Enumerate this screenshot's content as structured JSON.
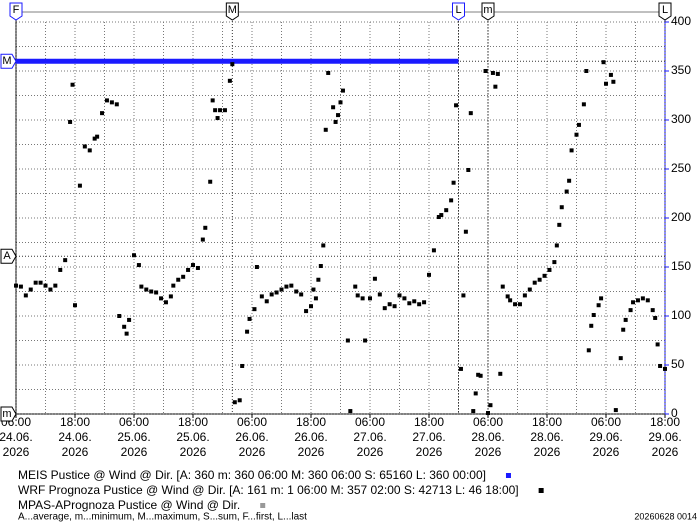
{
  "chart_data": {
    "type": "scatter",
    "xlim": [
      "2026-06-24T06:00",
      "2026-06-29T18:00"
    ],
    "ylim": [
      0,
      400
    ],
    "xticks": [
      {
        "value": "2026-06-24T06:00",
        "label": [
          "06:00",
          "24.06.",
          "2026"
        ]
      },
      {
        "value": "2026-06-24T18:00",
        "label": [
          "18:00",
          "24.06.",
          "2026"
        ]
      },
      {
        "value": "2026-06-25T06:00",
        "label": [
          "06:00",
          "25.06.",
          "2026"
        ]
      },
      {
        "value": "2026-06-25T18:00",
        "label": [
          "18:00",
          "25.06.",
          "2026"
        ]
      },
      {
        "value": "2026-06-26T06:00",
        "label": [
          "06:00",
          "26.06.",
          "2026"
        ]
      },
      {
        "value": "2026-06-26T18:00",
        "label": [
          "18:00",
          "26.06.",
          "2026"
        ]
      },
      {
        "value": "2026-06-27T06:00",
        "label": [
          "06:00",
          "27.06.",
          "2026"
        ]
      },
      {
        "value": "2026-06-27T18:00",
        "label": [
          "18:00",
          "27.06.",
          "2026"
        ]
      },
      {
        "value": "2026-06-28T06:00",
        "label": [
          "06:00",
          "28.06.",
          "2026"
        ]
      },
      {
        "value": "2026-06-28T18:00",
        "label": [
          "18:00",
          "28.06.",
          "2026"
        ]
      },
      {
        "value": "2026-06-29T06:00",
        "label": [
          "06:00",
          "29.06.",
          "2026"
        ]
      },
      {
        "value": "2026-06-29T18:00",
        "label": [
          "18:00",
          "29.06.",
          "2026"
        ]
      }
    ],
    "yticks": [
      0,
      50,
      100,
      150,
      200,
      250,
      300,
      350,
      400
    ],
    "grid": true,
    "minor_grid": true,
    "axis_color": "#1a1aff",
    "series": [
      {
        "name": "MEIS Pustice @ Wind @ Dir.",
        "stats": "[A: 360 m: 360 06:00 M: 360 06:00 S: 65160 L: 360 00:00]",
        "color": "#1a1aff",
        "style": "line",
        "x": [
          "2026-06-24T06:00",
          "2026-06-28T00:00"
        ],
        "values": [
          360,
          360
        ]
      },
      {
        "name": "WRF Prognoza Pustice @ Wind @ Dir.",
        "stats": "[A: 161 m: 1 06:00 M: 357 02:00 S: 42713 L: 46 18:00]",
        "color": "#000000",
        "style": "points",
        "x": [
          "2026-06-24T06:00",
          "2026-06-24T07:00",
          "2026-06-24T08:00",
          "2026-06-24T09:00",
          "2026-06-24T10:00",
          "2026-06-24T11:00",
          "2026-06-24T12:00",
          "2026-06-24T13:00",
          "2026-06-24T14:00",
          "2026-06-24T15:00",
          "2026-06-24T16:00",
          "2026-06-24T17:00",
          "2026-06-24T17:30",
          "2026-06-24T18:00",
          "2026-06-24T19:00",
          "2026-06-24T20:00",
          "2026-06-24T21:00",
          "2026-06-24T22:00",
          "2026-06-24T22:30",
          "2026-06-24T23:30",
          "2026-06-25T00:30",
          "2026-06-25T01:30",
          "2026-06-25T02:30",
          "2026-06-25T03:00",
          "2026-06-25T04:00",
          "2026-06-25T04:30",
          "2026-06-25T05:00",
          "2026-06-25T06:00",
          "2026-06-25T07:00",
          "2026-06-25T07:30",
          "2026-06-25T08:30",
          "2026-06-25T09:30",
          "2026-06-25T10:30",
          "2026-06-25T11:30",
          "2026-06-25T12:30",
          "2026-06-25T13:30",
          "2026-06-25T14:00",
          "2026-06-25T15:00",
          "2026-06-25T16:00",
          "2026-06-25T17:00",
          "2026-06-25T18:00",
          "2026-06-25T19:00",
          "2026-06-25T20:00",
          "2026-06-25T20:30",
          "2026-06-25T21:30",
          "2026-06-25T22:00",
          "2026-06-25T22:30",
          "2026-06-25T23:00",
          "2026-06-25T23:30",
          "2026-06-26T00:30",
          "2026-06-26T01:30",
          "2026-06-26T02:00",
          "2026-06-26T02:30",
          "2026-06-26T03:30",
          "2026-06-26T04:00",
          "2026-06-26T05:00",
          "2026-06-26T05:30",
          "2026-06-26T06:30",
          "2026-06-26T07:00",
          "2026-06-26T08:00",
          "2026-06-26T09:00",
          "2026-06-26T10:00",
          "2026-06-26T11:00",
          "2026-06-26T12:00",
          "2026-06-26T13:00",
          "2026-06-26T14:00",
          "2026-06-26T15:00",
          "2026-06-26T16:00",
          "2026-06-26T17:00",
          "2026-06-26T18:00",
          "2026-06-26T18:30",
          "2026-06-26T19:00",
          "2026-06-26T19:30",
          "2026-06-26T20:00",
          "2026-06-26T20:30",
          "2026-06-26T21:00",
          "2026-06-26T21:30",
          "2026-06-26T22:30",
          "2026-06-26T23:00",
          "2026-06-26T23:30",
          "2026-06-27T00:00",
          "2026-06-27T00:30",
          "2026-06-27T01:30",
          "2026-06-27T02:00",
          "2026-06-27T03:00",
          "2026-06-27T03:30",
          "2026-06-27T04:30",
          "2026-06-27T05:00",
          "2026-06-27T06:00",
          "2026-06-27T07:00",
          "2026-06-27T08:00",
          "2026-06-27T09:00",
          "2026-06-27T10:00",
          "2026-06-27T11:00",
          "2026-06-27T12:00",
          "2026-06-27T13:00",
          "2026-06-27T14:00",
          "2026-06-27T15:00",
          "2026-06-27T16:00",
          "2026-06-27T17:00",
          "2026-06-27T18:00",
          "2026-06-27T19:00",
          "2026-06-27T20:00",
          "2026-06-27T20:30",
          "2026-06-27T21:30",
          "2026-06-27T22:30",
          "2026-06-27T23:00",
          "2026-06-27T23:30",
          "2026-06-28T00:30",
          "2026-06-28T01:00",
          "2026-06-28T01:30",
          "2026-06-28T02:00",
          "2026-06-28T02:30",
          "2026-06-28T03:00",
          "2026-06-28T03:30",
          "2026-06-28T04:00",
          "2026-06-28T04:30",
          "2026-06-28T05:30",
          "2026-06-28T06:00",
          "2026-06-28T06:30",
          "2026-06-28T07:00",
          "2026-06-28T07:30",
          "2026-06-28T08:00",
          "2026-06-28T08:30",
          "2026-06-28T09:00",
          "2026-06-28T10:00",
          "2026-06-28T10:30",
          "2026-06-28T11:30",
          "2026-06-28T12:30",
          "2026-06-28T13:30",
          "2026-06-28T14:30",
          "2026-06-28T15:30",
          "2026-06-28T16:30",
          "2026-06-28T17:30",
          "2026-06-28T18:30",
          "2026-06-28T19:30",
          "2026-06-28T20:00",
          "2026-06-28T20:30",
          "2026-06-28T21:00",
          "2026-06-28T22:00",
          "2026-06-28T22:30",
          "2026-06-28T23:00",
          "2026-06-29T00:00",
          "2026-06-29T00:30",
          "2026-06-29T01:30",
          "2026-06-29T02:00",
          "2026-06-29T02:30",
          "2026-06-29T03:00",
          "2026-06-29T03:30",
          "2026-06-29T04:30",
          "2026-06-29T05:00",
          "2026-06-29T05:30",
          "2026-06-29T06:00",
          "2026-06-29T07:00",
          "2026-06-29T07:30",
          "2026-06-29T08:00",
          "2026-06-29T09:00",
          "2026-06-29T09:30",
          "2026-06-29T10:00",
          "2026-06-29T11:00",
          "2026-06-29T11:30",
          "2026-06-29T12:30",
          "2026-06-29T13:30",
          "2026-06-29T14:30",
          "2026-06-29T15:30",
          "2026-06-29T16:00",
          "2026-06-29T16:30",
          "2026-06-29T17:00",
          "2026-06-29T18:00"
        ],
        "values": [
          131,
          130,
          121,
          127,
          134,
          134,
          131,
          127,
          131,
          147,
          157,
          298,
          336,
          111,
          233,
          273,
          269,
          281,
          283,
          307,
          320,
          318,
          316,
          100,
          89,
          82,
          96,
          162,
          152,
          130,
          127,
          125,
          124,
          118,
          114,
          120,
          131,
          137,
          140,
          147,
          152,
          149,
          178,
          190,
          237,
          320,
          310,
          302,
          310,
          310,
          340,
          357,
          12,
          14,
          49,
          84,
          97,
          107,
          150,
          120,
          115,
          122,
          124,
          127,
          130,
          131,
          125,
          122,
          105,
          110,
          127,
          118,
          137,
          151,
          172,
          290,
          348,
          313,
          298,
          305,
          318,
          330,
          75,
          3,
          130,
          121,
          118,
          75,
          118,
          138,
          122,
          108,
          112,
          110,
          121,
          118,
          113,
          115,
          112,
          114,
          142,
          167,
          201,
          203,
          208,
          218,
          236,
          315,
          46,
          121,
          186,
          249,
          307,
          3,
          21,
          40,
          39,
          350,
          1,
          9,
          348,
          334,
          347,
          41,
          130,
          120,
          116,
          112,
          112,
          121,
          127,
          134,
          137,
          141,
          147,
          155,
          172,
          193,
          211,
          227,
          238,
          269,
          285,
          295,
          316,
          350,
          65,
          90,
          101,
          111,
          118,
          359,
          337,
          346,
          339,
          4,
          57,
          86,
          96,
          106,
          114,
          116,
          118,
          116,
          106,
          98,
          71,
          49,
          46
        ]
      },
      {
        "name": "MPAS-APrognoza Pustice @ Wind @ Dir.",
        "color": "#999999",
        "style": "points",
        "x": [],
        "values": []
      }
    ],
    "markers_top": [
      {
        "label": "F",
        "x": "2026-06-24T06:00",
        "color": "#1a1aff"
      },
      {
        "label": "M",
        "x": "2026-06-26T02:00",
        "color": "#000000"
      },
      {
        "label": "L",
        "x": "2026-06-28T00:00",
        "color": "#1a1aff"
      },
      {
        "label": "m",
        "x": "2026-06-28T06:00",
        "color": "#000000"
      },
      {
        "label": "L",
        "x": "2026-06-29T18:00",
        "color": "#000000"
      }
    ],
    "markers_left": [
      {
        "label": "M",
        "value": 360,
        "color": "#1a1aff"
      },
      {
        "label": "A",
        "value": 161,
        "color": "#000000"
      },
      {
        "label": "m",
        "value": 0,
        "color": "#000000"
      }
    ],
    "footnote": "A...average, m...minimum, M...maximum, S...sum, F...first, L...last",
    "timestamp": "20260628 0014"
  }
}
